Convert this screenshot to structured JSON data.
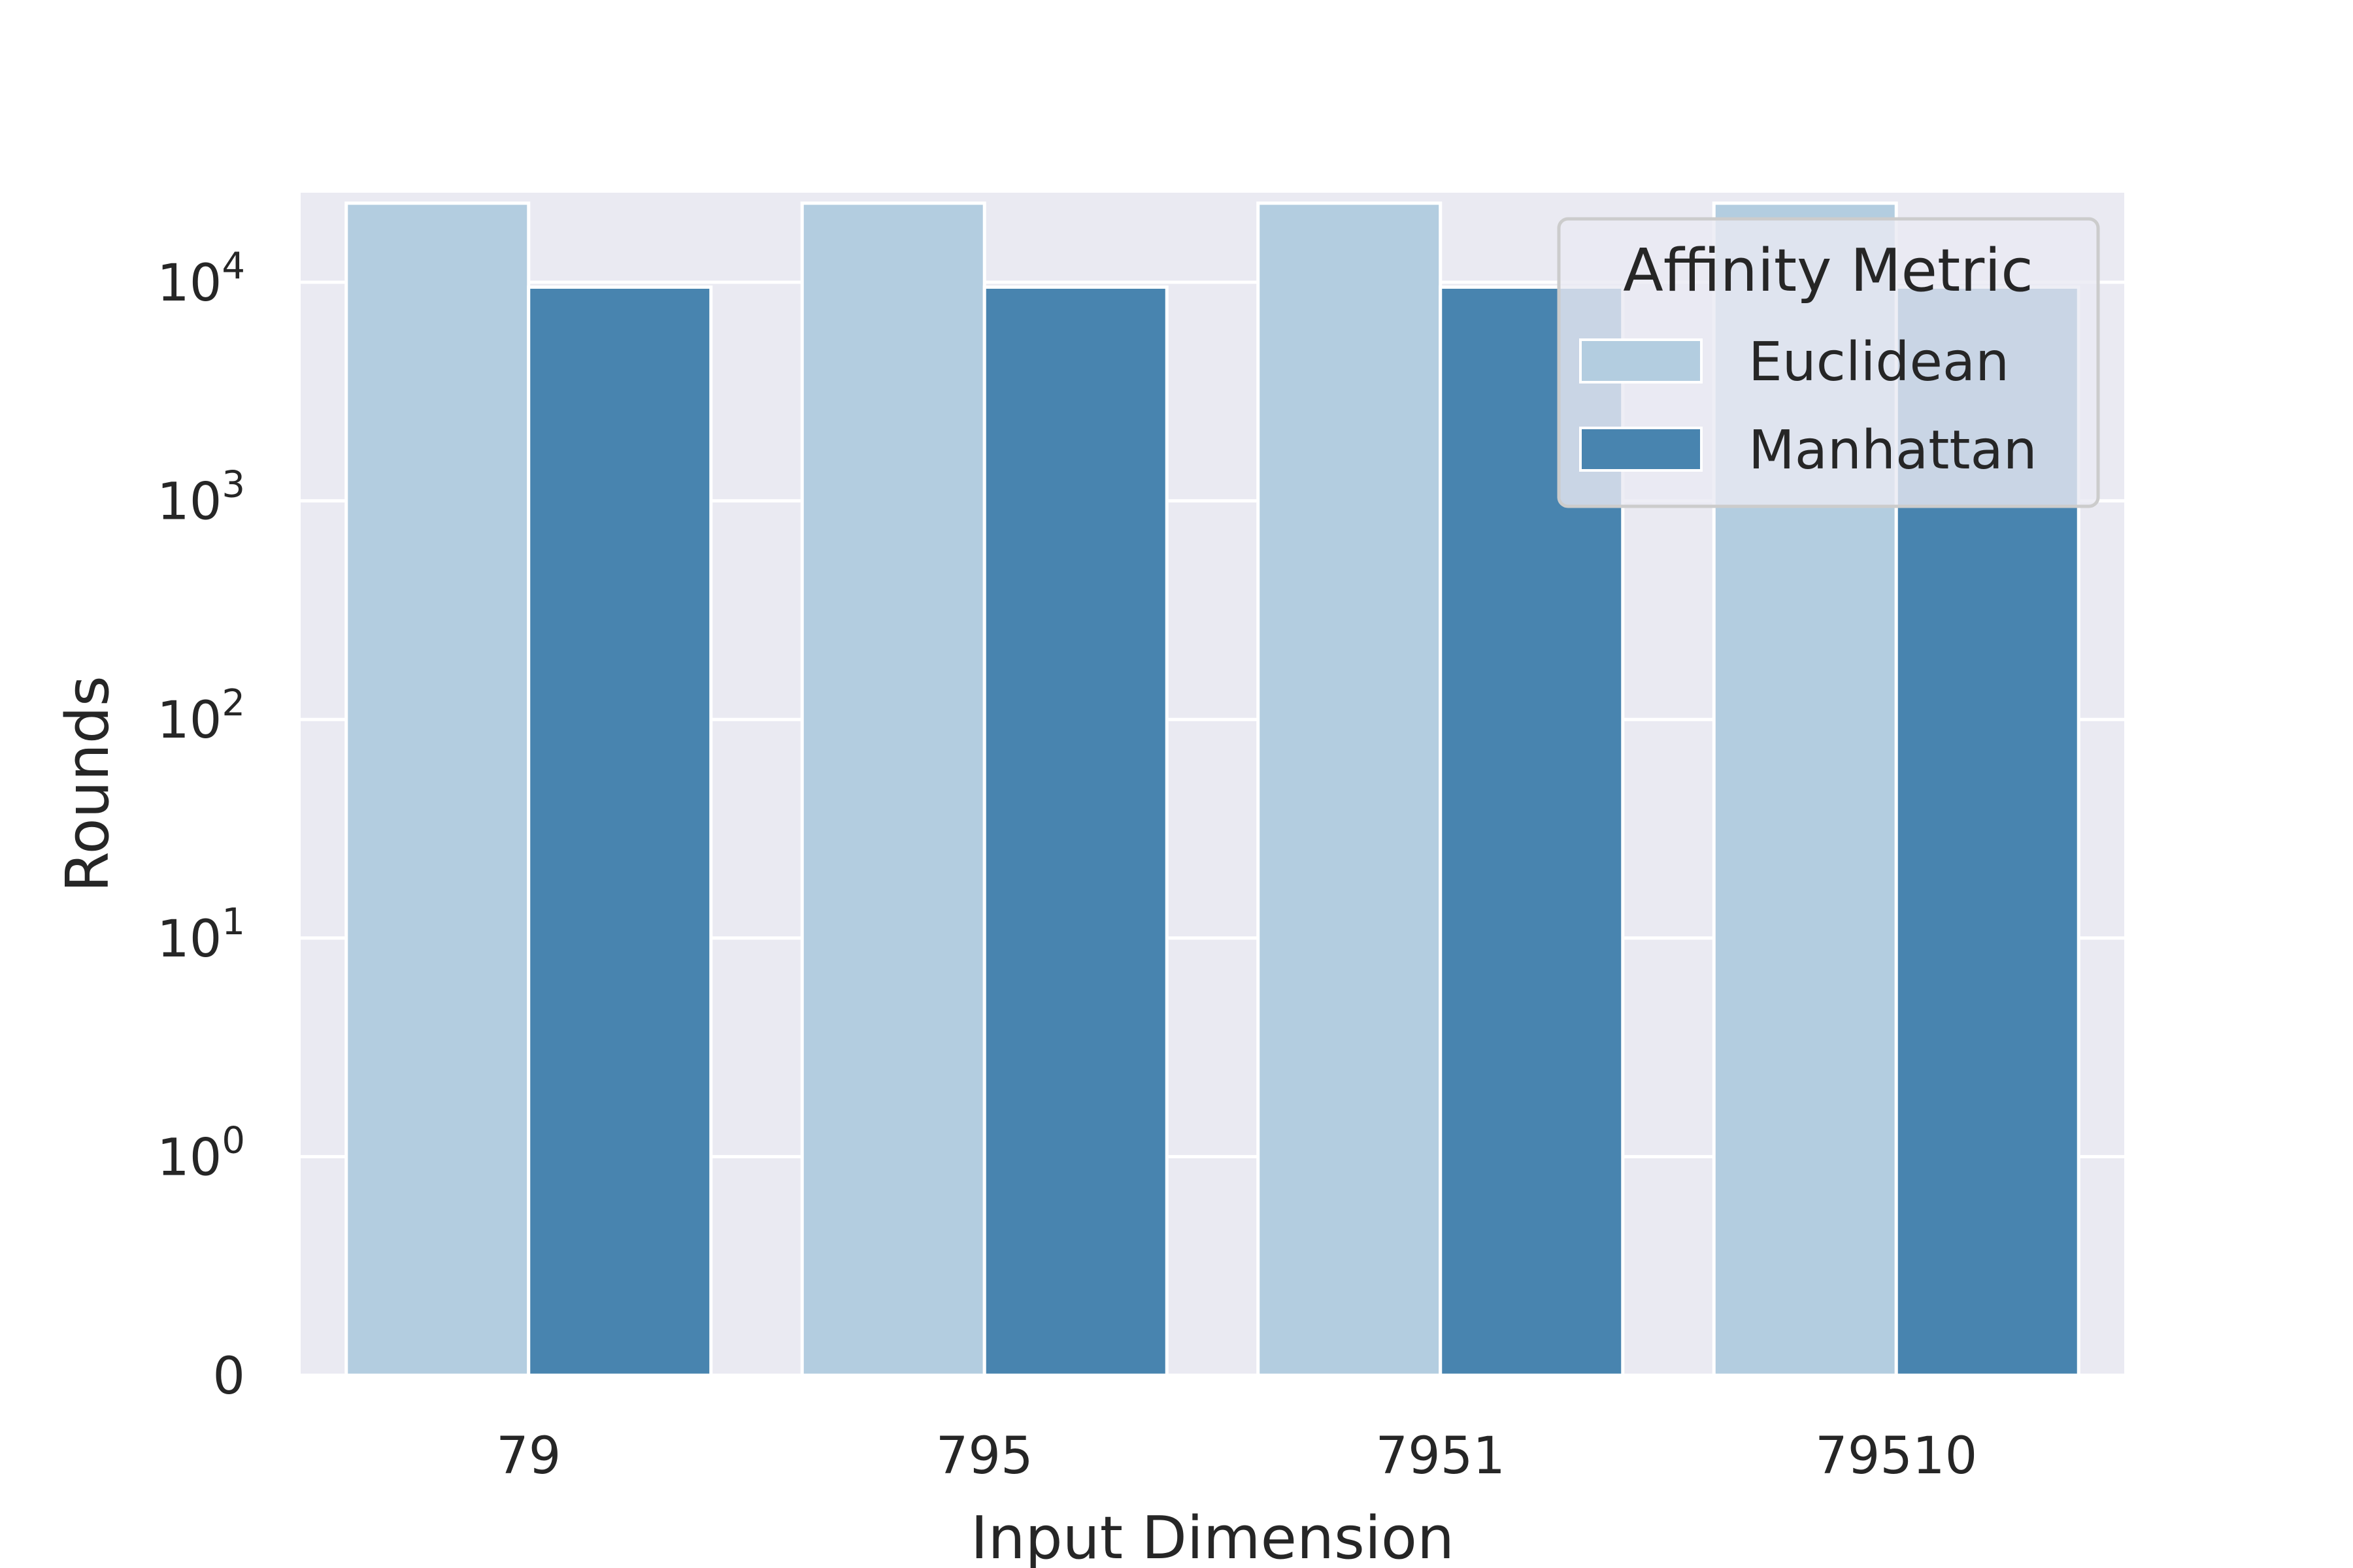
{
  "chart_data": {
    "type": "bar",
    "xlabel": "Input Dimension",
    "ylabel": "Rounds",
    "yscale": "symlog",
    "categories": [
      "79",
      "795",
      "7951",
      "79510"
    ],
    "series": [
      {
        "name": "Euclidean",
        "values": [
          23000,
          23000,
          23000,
          23000
        ],
        "color": "#b3cde0"
      },
      {
        "name": "Manhattan",
        "values": [
          9500,
          9500,
          9500,
          9500
        ],
        "color": "#4884af"
      }
    ],
    "yticks": [
      {
        "base": "0",
        "exp": ""
      },
      {
        "base": "10",
        "exp": "0"
      },
      {
        "base": "10",
        "exp": "1"
      },
      {
        "base": "10",
        "exp": "2"
      },
      {
        "base": "10",
        "exp": "3"
      },
      {
        "base": "10",
        "exp": "4"
      }
    ],
    "ylim": [
      0,
      23000
    ],
    "grid": true,
    "legend": {
      "title": "Affinity Metric",
      "position": "top-right"
    },
    "colors": {
      "background": "#eaeaf2",
      "grid": "#ffffff",
      "text": "#262626"
    }
  }
}
